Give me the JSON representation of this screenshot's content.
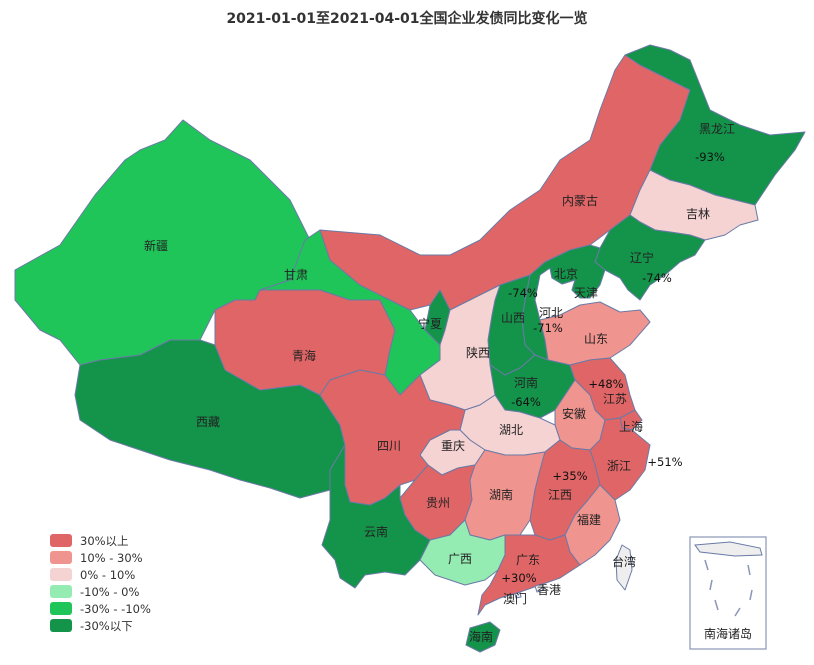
{
  "title": "2021-01-01至2021-04-01全国企业发债同比变化一览",
  "colors": {
    "c_high": "#e06566",
    "c_mid": "#f0948f",
    "c_low": "#f5d3d3",
    "c_neg_low": "#95ecb2",
    "c_neg_mid": "#20c55a",
    "c_neg_high": "#14934a",
    "stroke": "#6a7aa6"
  },
  "legend": [
    {
      "label": "30%以上",
      "color": "#e06566"
    },
    {
      "label": "10% - 30%",
      "color": "#f0948f"
    },
    {
      "label": "0% - 10%",
      "color": "#f5d3d3"
    },
    {
      "label": "-10% - 0%",
      "color": "#95ecb2"
    },
    {
      "label": "-30% - -10%",
      "color": "#20c55a"
    },
    {
      "label": "-30%以下",
      "color": "#14934a"
    }
  ],
  "provinces": [
    {
      "id": "xinjiang",
      "name": "新疆",
      "bucket": "-30% - -10%"
    },
    {
      "id": "xizang",
      "name": "西藏",
      "bucket": "-30%以下"
    },
    {
      "id": "qinghai",
      "name": "青海",
      "bucket": "30%以上"
    },
    {
      "id": "gansu",
      "name": "甘肃",
      "bucket": "-30% - -10%"
    },
    {
      "id": "neimenggu",
      "name": "内蒙古",
      "bucket": "30%以上"
    },
    {
      "id": "heilongjiang",
      "name": "黑龙江",
      "bucket": "-30%以下",
      "change": "-93%"
    },
    {
      "id": "jilin",
      "name": "吉林",
      "bucket": "0% - 10%"
    },
    {
      "id": "liaoning",
      "name": "辽宁",
      "bucket": "-30%以下",
      "change": "-74%"
    },
    {
      "id": "beijing",
      "name": "北京",
      "bucket": "-30%以下",
      "change": "-74%"
    },
    {
      "id": "tianjin",
      "name": "天津",
      "bucket": "-30%以下"
    },
    {
      "id": "hebei",
      "name": "河北",
      "bucket": "-30%以下",
      "change": "-71%"
    },
    {
      "id": "shanxi",
      "name": "山西",
      "bucket": "-30%以下"
    },
    {
      "id": "ningxia",
      "name": "宁夏",
      "bucket": "-30%以下"
    },
    {
      "id": "shaanxi",
      "name": "陕西",
      "bucket": "0% - 10%"
    },
    {
      "id": "shandong",
      "name": "山东",
      "bucket": "10% - 30%"
    },
    {
      "id": "henan",
      "name": "河南",
      "bucket": "-30%以下",
      "change": "-64%"
    },
    {
      "id": "jiangsu",
      "name": "江苏",
      "bucket": "30%以上",
      "change": "+48%"
    },
    {
      "id": "anhui",
      "name": "安徽",
      "bucket": "10% - 30%"
    },
    {
      "id": "shanghai",
      "name": "上海",
      "bucket": "30%以上"
    },
    {
      "id": "zhejiang",
      "name": "浙江",
      "bucket": "30%以上",
      "change": "+51%"
    },
    {
      "id": "hubei",
      "name": "湖北",
      "bucket": "0% - 10%"
    },
    {
      "id": "chongqing",
      "name": "重庆",
      "bucket": "0% - 10%"
    },
    {
      "id": "sichuan",
      "name": "四川",
      "bucket": "30%以上"
    },
    {
      "id": "guizhou",
      "name": "贵州",
      "bucket": "30%以上"
    },
    {
      "id": "yunnan",
      "name": "云南",
      "bucket": "-30%以下"
    },
    {
      "id": "hunan",
      "name": "湖南",
      "bucket": "10% - 30%"
    },
    {
      "id": "jiangxi",
      "name": "江西",
      "bucket": "30%以上",
      "change": "+35%"
    },
    {
      "id": "fujian",
      "name": "福建",
      "bucket": "10% - 30%"
    },
    {
      "id": "guangxi",
      "name": "广西",
      "bucket": "-10% - 0%"
    },
    {
      "id": "guangdong",
      "name": "广东",
      "bucket": "30%以上",
      "change": "+30%"
    },
    {
      "id": "hainan",
      "name": "海南",
      "bucket": "-30%以下"
    },
    {
      "id": "taiwan",
      "name": "台湾",
      "bucket": "none"
    },
    {
      "id": "xianggang",
      "name": "香港",
      "bucket": "none"
    },
    {
      "id": "aomen",
      "name": "澳门",
      "bucket": "none"
    }
  ],
  "inset_label": "南海诸岛"
}
